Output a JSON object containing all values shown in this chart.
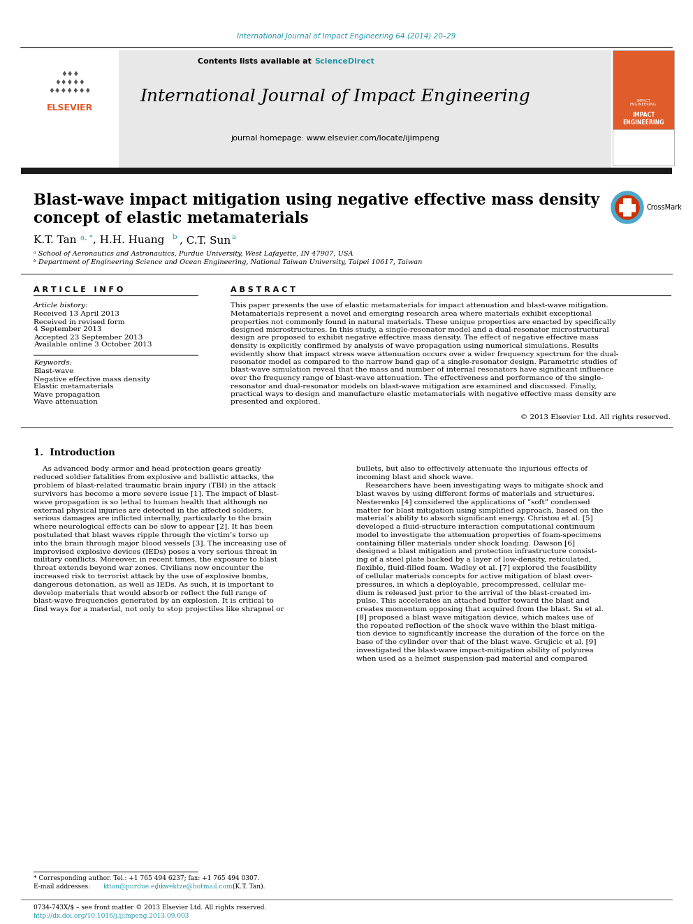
{
  "journal_ref": "International Journal of Impact Engineering 64 (2014) 20–29",
  "journal_ref_color": "#2196a8",
  "header_bg_color": "#e8e8e8",
  "journal_title": "International Journal of Impact Engineering",
  "journal_homepage": "journal homepage: www.elsevier.com/locate/ijimpeng",
  "paper_title_line1": "Blast-wave impact mitigation using negative effective mass density",
  "paper_title_line2": "concept of elastic metamaterials",
  "affil_a": "ᵃ School of Aeronautics and Astronautics, Purdue University, West Lafayette, IN 47907, USA",
  "affil_b": "ᵇ Department of Engineering Science and Ocean Engineering, National Taiwan University, Taipei 10617, Taiwan",
  "article_info_title": "A R T I C L E   I N F O",
  "abstract_title": "A B S T R A C T",
  "article_history_title": "Article history:",
  "received": "Received 13 April 2013",
  "revised": "Received in revised form",
  "revised2": "4 September 2013",
  "accepted": "Accepted 23 September 2013",
  "available": "Available online 3 October 2013",
  "keywords_title": "Keywords:",
  "kw1": "Blast-wave",
  "kw2": "Negative effective mass density",
  "kw3": "Elastic metamaterials",
  "kw4": "Wave propagation",
  "kw5": "Wave attenuation",
  "copyright": "© 2013 Elsevier Ltd. All rights reserved.",
  "intro_title": "1.  Introduction",
  "footnote1": "* Corresponding author. Tel.: +1 765 494 6237; fax: +1 765 494 0307.",
  "footer1": "0734-743X/$ – see front matter © 2013 Elsevier Ltd. All rights reserved.",
  "footer2": "http://dx.doi.org/10.1016/j.ijimpeng.2013.09.003",
  "elsevier_color": "#e05c2a",
  "link_color": "#2196a8",
  "black_bar_color": "#1a1a1a",
  "separator_color": "#404040",
  "abstract_lines": [
    "This paper presents the use of elastic metamaterials for impact attenuation and blast-wave mitigation.",
    "Metamaterials represent a novel and emerging research area where materials exhibit exceptional",
    "properties not commonly found in natural materials. These unique properties are enacted by specifically",
    "designed microstructures. In this study, a single-resonator model and a dual-resonator microstructural",
    "design are proposed to exhibit negative effective mass density. The effect of negative effective mass",
    "density is explicitly confirmed by analysis of wave propagation using numerical simulations. Results",
    "evidently show that impact stress wave attenuation occurs over a wider frequency spectrum for the dual-",
    "resonator model as compared to the narrow band gap of a single-resonator design. Parametric studies of",
    "blast-wave simulation reveal that the mass and number of internal resonators have significant influence",
    "over the frequency range of blast-wave attenuation. The effectiveness and performance of the single-",
    "resonator and dual-resonator models on blast-wave mitigation are examined and discussed. Finally,",
    "practical ways to design and manufacture elastic metamaterials with negative effective mass density are",
    "presented and explored."
  ],
  "intro_col1_lines": [
    "    As advanced body armor and head protection gears greatly",
    "reduced soldier fatalities from explosive and ballistic attacks, the",
    "problem of blast-related traumatic brain injury (TBI) in the attack",
    "survivors has become a more severe issue [1]. The impact of blast-",
    "wave propagation is so lethal to human health that although no",
    "external physical injuries are detected in the affected soldiers,",
    "serious damages are inflicted internally, particularly to the brain",
    "where neurological effects can be slow to appear [2]. It has been",
    "postulated that blast waves ripple through the victim’s torso up",
    "into the brain through major blood vessels [3]. The increasing use of",
    "improvised explosive devices (IEDs) poses a very serious threat in",
    "military conflicts. Moreover, in recent times, the exposure to blast",
    "threat extends beyond war zones. Civilians now encounter the",
    "increased risk to terrorist attack by the use of explosive bombs,",
    "dangerous detonation, as well as IEDs. As such, it is important to",
    "develop materials that would absorb or reflect the full range of",
    "blast-wave frequencies generated by an explosion. It is critical to",
    "find ways for a material, not only to stop projectiles like shrapnel or"
  ],
  "intro_col2_lines": [
    "bullets, but also to effectively attenuate the injurious effects of",
    "incoming blast and shock wave.",
    "    Researchers have been investigating ways to mitigate shock and",
    "blast waves by using different forms of materials and structures.",
    "Nesterenko [4] considered the applications of “soft” condensed",
    "matter for blast mitigation using simplified approach, based on the",
    "material’s ability to absorb significant energy. Christou et al. [5]",
    "developed a fluid-structure interaction computational continuum",
    "model to investigate the attenuation properties of foam-specimens",
    "containing filler materials under shock loading. Dawson [6]",
    "designed a blast mitigation and protection infrastructure consist-",
    "ing of a steel plate backed by a layer of low-density, reticulated,",
    "flexible, fluid-filled foam. Wadley et al. [7] explored the feasibility",
    "of cellular materials concepts for active mitigation of blast over-",
    "pressures, in which a deployable, precompressed, cellular me-",
    "dium is released just prior to the arrival of the blast-created im-",
    "pulse. This accelerates an attached buffer toward the blast and",
    "creates momentum opposing that acquired from the blast. Su et al.",
    "[8] proposed a blast wave mitigation device, which makes use of",
    "the repeated reflection of the shock wave within the blast mitiga-",
    "tion device to significantly increase the duration of the force on the",
    "base of the cylinder over that of the blast wave. Grujicic et al. [9]",
    "investigated the blast-wave impact-mitigation ability of polyurea",
    "when used as a helmet suspension-pad material and compared"
  ]
}
